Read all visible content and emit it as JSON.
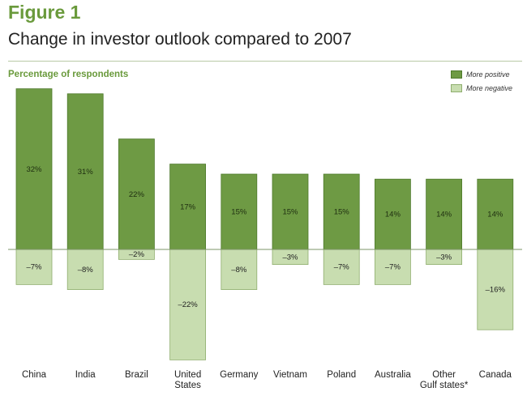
{
  "figure_label": "Figure 1",
  "title": "Change in investor outlook compared to 2007",
  "ylabel": "Percentage of respondents",
  "legend": {
    "positive": "More positive",
    "negative": "More negative"
  },
  "colors": {
    "positive": "#6e9a44",
    "negative": "#c8ddb0",
    "accent": "#6a9a3c"
  },
  "chart_data": {
    "type": "bar",
    "categories": [
      "China",
      "India",
      "Brazil",
      "United States",
      "Germany",
      "Vietnam",
      "Poland",
      "Australia",
      "Other Gulf states*",
      "Canada"
    ],
    "category_lines": [
      [
        "China"
      ],
      [
        "India"
      ],
      [
        "Brazil"
      ],
      [
        "United",
        "States"
      ],
      [
        "Germany"
      ],
      [
        "Vietnam"
      ],
      [
        "Poland"
      ],
      [
        "Australia"
      ],
      [
        "Other",
        "Gulf states*"
      ],
      [
        "Canada"
      ]
    ],
    "series": [
      {
        "name": "More positive",
        "values": [
          32,
          31,
          22,
          17,
          15,
          15,
          15,
          14,
          14,
          14
        ],
        "labels": [
          "32%",
          "31%",
          "22%",
          "17%",
          "15%",
          "15%",
          "15%",
          "14%",
          "14%",
          "14%"
        ]
      },
      {
        "name": "More negative",
        "values": [
          -7,
          -8,
          -2,
          -22,
          -8,
          -3,
          -7,
          -7,
          -3,
          -16
        ],
        "labels": [
          "–7%",
          "–8%",
          "–2%",
          "–22%",
          "–8%",
          "–3%",
          "–7%",
          "–7%",
          "–3%",
          "–16%"
        ]
      }
    ],
    "ylim": [
      -22,
      32
    ],
    "grid": false,
    "legend_position": "top-right"
  }
}
